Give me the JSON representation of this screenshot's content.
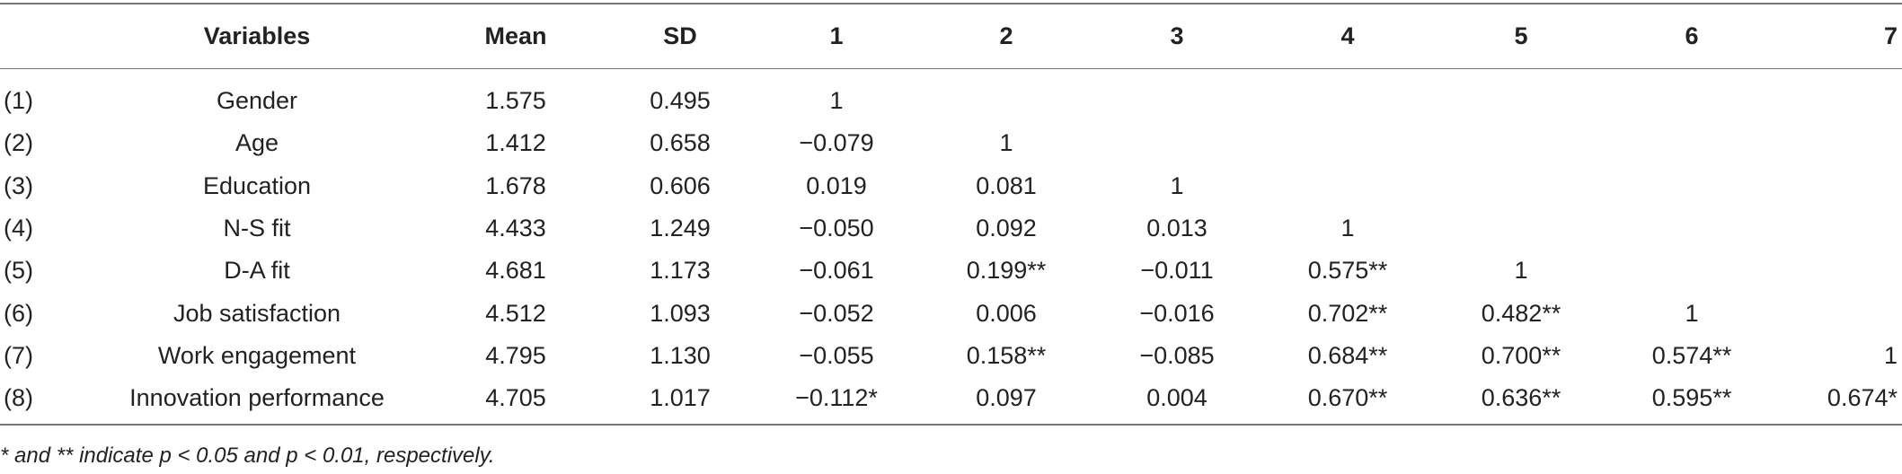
{
  "table": {
    "header": [
      "Variables",
      "Mean",
      "SD",
      "1",
      "2",
      "3",
      "4",
      "5",
      "6",
      "7"
    ],
    "rows": [
      {
        "index": "(1)",
        "variable": "Gender",
        "mean": "1.575",
        "sd": "0.495",
        "correlations": [
          "1"
        ]
      },
      {
        "index": "(2)",
        "variable": "Age",
        "mean": "1.412",
        "sd": "0.658",
        "correlations": [
          "−0.079",
          "1"
        ]
      },
      {
        "index": "(3)",
        "variable": "Education",
        "mean": "1.678",
        "sd": "0.606",
        "correlations": [
          "0.019",
          "0.081",
          "1"
        ]
      },
      {
        "index": "(4)",
        "variable": "N-S fit",
        "mean": "4.433",
        "sd": "1.249",
        "correlations": [
          "−0.050",
          "0.092",
          "0.013",
          "1"
        ]
      },
      {
        "index": "(5)",
        "variable": "D-A fit",
        "mean": "4.681",
        "sd": "1.173",
        "correlations": [
          "−0.061",
          "0.199**",
          "−0.011",
          "0.575**",
          "1"
        ]
      },
      {
        "index": "(6)",
        "variable": "Job satisfaction",
        "mean": "4.512",
        "sd": "1.093",
        "correlations": [
          "−0.052",
          "0.006",
          "−0.016",
          "0.702**",
          "0.482**",
          "1"
        ]
      },
      {
        "index": "(7)",
        "variable": "Work engagement",
        "mean": "4.795",
        "sd": "1.130",
        "correlations": [
          "−0.055",
          "0.158**",
          "−0.085",
          "0.684**",
          "0.700**",
          "0.574**",
          "1"
        ]
      },
      {
        "index": "(8)",
        "variable": "Innovation performance",
        "mean": "4.705",
        "sd": "1.017",
        "correlations": [
          "−0.112*",
          "0.097",
          "0.004",
          "0.670**",
          "0.636**",
          "0.595**",
          "0.674*"
        ]
      }
    ],
    "footnote": "* and ** indicate p < 0.05 and p < 0.01, respectively."
  }
}
